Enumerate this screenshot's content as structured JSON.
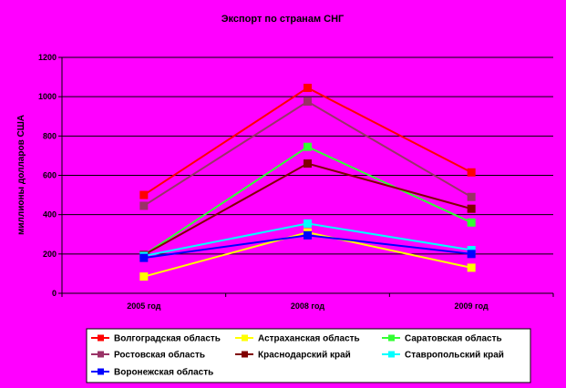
{
  "chart_data": {
    "type": "line",
    "title": "Экспорт по странам СНГ",
    "xlabel": "",
    "ylabel": "миллионы долларов США",
    "categories": [
      "2005 год",
      "2008 год",
      "2009 год"
    ],
    "ylim": [
      0,
      1200
    ],
    "yticks": [
      0,
      200,
      400,
      600,
      800,
      1000,
      1200
    ],
    "grid": "horizontal",
    "legend_position": "bottom",
    "series": [
      {
        "name": "Волгоградская область",
        "values": [
          500,
          1045,
          615
        ],
        "color": "#ff0000"
      },
      {
        "name": "Астраханская область",
        "values": [
          85,
          310,
          130
        ],
        "color": "#ffff00"
      },
      {
        "name": "Саратовская область",
        "values": [
          195,
          745,
          360
        ],
        "color": "#33ff33"
      },
      {
        "name": "Ростовская область",
        "values": [
          445,
          975,
          490
        ],
        "color": "#993366"
      },
      {
        "name": "Краснодарский край",
        "values": [
          195,
          660,
          430
        ],
        "color": "#800000"
      },
      {
        "name": "Ставропольский край",
        "values": [
          190,
          355,
          220
        ],
        "color": "#00ffff"
      },
      {
        "name": "Воронежская область",
        "values": [
          180,
          295,
          200
        ],
        "color": "#0000ff"
      }
    ]
  }
}
